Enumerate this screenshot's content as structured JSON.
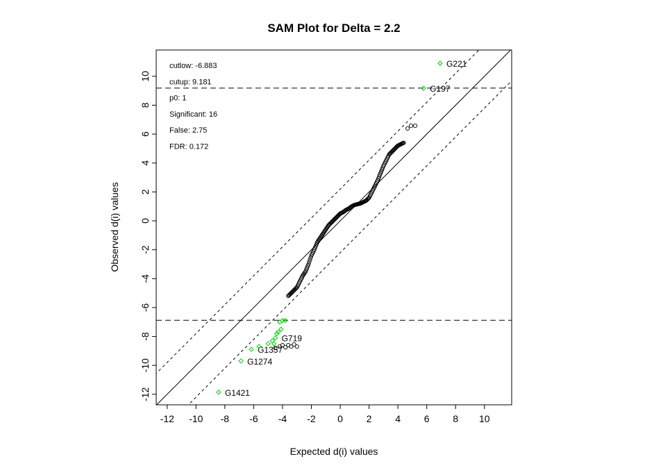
{
  "chart_data": {
    "type": "scatter",
    "title": "SAM Plot for Delta = 2.2",
    "xlabel": "Expected d(i) values",
    "ylabel": "Observed d(i) values",
    "xlim": [
      -12.76,
      11.89
    ],
    "ylim": [
      -12.73,
      11.82
    ],
    "xticks": [
      -12,
      -10,
      -8,
      -6,
      -4,
      -2,
      0,
      2,
      4,
      6,
      8,
      10
    ],
    "yticks": [
      -12,
      -10,
      -8,
      -6,
      -4,
      -2,
      0,
      2,
      4,
      6,
      8,
      10
    ],
    "delta": 2.2,
    "cutlow": -6.883,
    "cutup": 9.181,
    "info": [
      {
        "label": "cutlow:",
        "value": "-6.883"
      },
      {
        "label": "cutup:",
        "value": "9.181"
      },
      {
        "label": "p0:",
        "value": "1"
      },
      {
        "label": "Significant:",
        "value": "16"
      },
      {
        "label": "False:",
        "value": "2.75"
      },
      {
        "label": "FDR:",
        "value": "0.172"
      }
    ],
    "colors": {
      "significant": "#00cc00",
      "normal": "#000000"
    },
    "significant_points": [
      {
        "x": 6.93,
        "y": 10.9,
        "label": "G221"
      },
      {
        "x": 5.78,
        "y": 9.17,
        "label": "G197"
      },
      {
        "x": -8.43,
        "y": -11.86,
        "label": "G1421"
      },
      {
        "x": -6.88,
        "y": -9.7,
        "label": "G1274"
      },
      {
        "x": -6.16,
        "y": -8.89,
        "label": "G1357"
      },
      {
        "x": -5.63,
        "y": -8.69,
        "label": ""
      },
      {
        "x": -5.0,
        "y": -8.5,
        "label": ""
      },
      {
        "x": -4.7,
        "y": -8.3,
        "label": ""
      },
      {
        "x": -4.5,
        "y": -8.1,
        "label": "G719"
      },
      {
        "x": -4.3,
        "y": -7.7,
        "label": ""
      },
      {
        "x": -4.1,
        "y": -7.5,
        "label": ""
      },
      {
        "x": -4.2,
        "y": -7.0,
        "label": ""
      },
      {
        "x": -4.0,
        "y": -6.9,
        "label": ""
      },
      {
        "x": -3.8,
        "y": -6.9,
        "label": ""
      },
      {
        "x": -4.4,
        "y": -7.8,
        "label": ""
      },
      {
        "x": -4.6,
        "y": -8.5,
        "label": ""
      }
    ],
    "cluster_points": [
      {
        "x": -4.5,
        "y": -8.8
      },
      {
        "x": -4.2,
        "y": -8.7
      },
      {
        "x": -4.0,
        "y": -8.6
      },
      {
        "x": -3.8,
        "y": -8.75
      },
      {
        "x": -3.6,
        "y": -8.6
      },
      {
        "x": -3.4,
        "y": -8.7
      },
      {
        "x": -3.2,
        "y": -8.55
      },
      {
        "x": -3.0,
        "y": -8.7
      }
    ],
    "curve_points": [
      [
        -3.6,
        -5.2
      ],
      [
        -3.4,
        -5.0
      ],
      [
        -3.2,
        -4.8
      ],
      [
        -3.0,
        -4.6
      ],
      [
        -2.8,
        -4.2
      ],
      [
        -2.6,
        -3.8
      ],
      [
        -2.4,
        -3.5
      ],
      [
        -2.2,
        -3.0
      ],
      [
        -2.0,
        -2.4
      ],
      [
        -1.8,
        -2.0
      ],
      [
        -1.6,
        -1.5
      ],
      [
        -1.4,
        -1.2
      ],
      [
        -1.2,
        -0.9
      ],
      [
        -1.0,
        -0.6
      ],
      [
        -0.8,
        -0.3
      ],
      [
        -0.6,
        -0.1
      ],
      [
        -0.4,
        0.1
      ],
      [
        -0.2,
        0.3
      ],
      [
        0.0,
        0.5
      ],
      [
        0.2,
        0.6
      ],
      [
        0.4,
        0.75
      ],
      [
        0.6,
        0.85
      ],
      [
        0.8,
        1.0
      ],
      [
        1.0,
        1.1
      ],
      [
        1.2,
        1.15
      ],
      [
        1.4,
        1.2
      ],
      [
        1.6,
        1.3
      ],
      [
        1.8,
        1.4
      ],
      [
        2.0,
        1.6
      ],
      [
        2.2,
        2.0
      ],
      [
        2.4,
        2.4
      ],
      [
        2.6,
        2.8
      ],
      [
        2.8,
        3.3
      ],
      [
        3.0,
        3.8
      ],
      [
        3.2,
        4.2
      ],
      [
        3.4,
        4.6
      ],
      [
        3.6,
        4.8
      ],
      [
        3.8,
        5.0
      ],
      [
        4.0,
        5.2
      ],
      [
        4.2,
        5.3
      ],
      [
        4.4,
        5.4
      ],
      [
        4.67,
        6.39
      ],
      [
        4.91,
        6.58
      ],
      [
        5.2,
        6.58
      ]
    ]
  }
}
